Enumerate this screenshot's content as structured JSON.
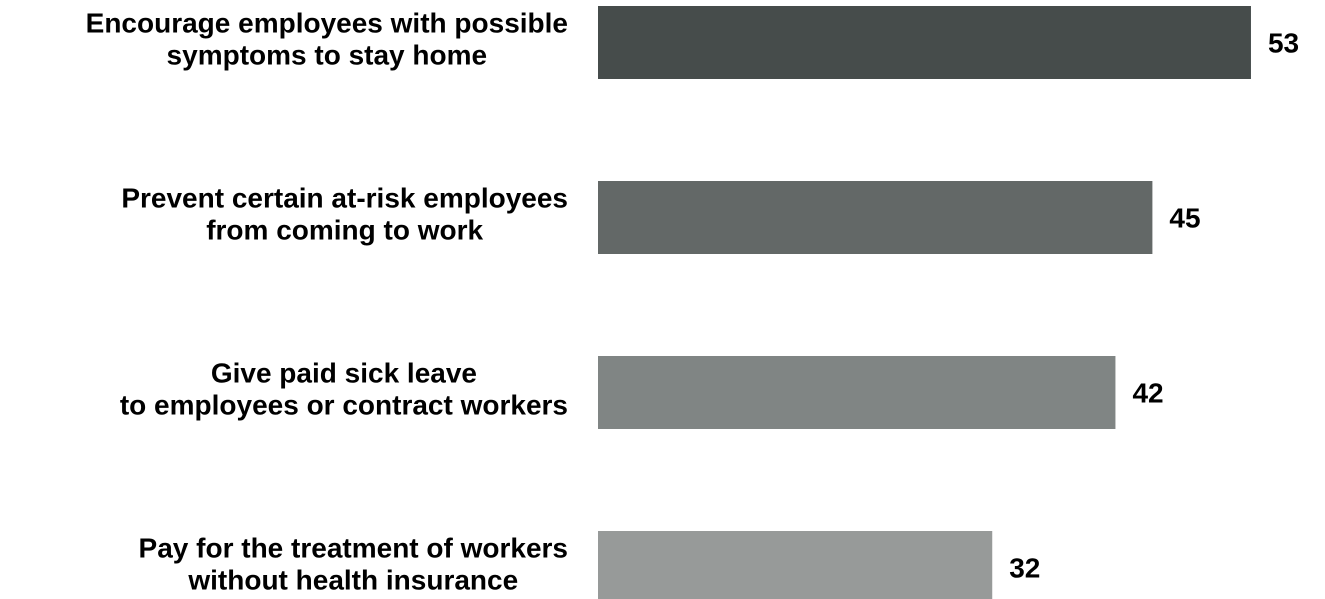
{
  "chart_data": {
    "type": "bar",
    "orientation": "horizontal",
    "categories": [
      [
        "Encourage employees with possible",
        "symptoms to stay home"
      ],
      [
        "Prevent certain at-risk employees",
        "from coming to work"
      ],
      [
        "Give paid sick leave",
        "to employees or contract workers"
      ],
      [
        "Pay for the treatment of workers",
        "without health insurance"
      ]
    ],
    "values": [
      53,
      45,
      42,
      32
    ],
    "bar_colors": [
      "#464c4b",
      "#636867",
      "#808584",
      "#979a99"
    ],
    "title": "",
    "xlabel": "",
    "ylabel": "",
    "grid": false,
    "legend": "none",
    "data_labels": true
  }
}
